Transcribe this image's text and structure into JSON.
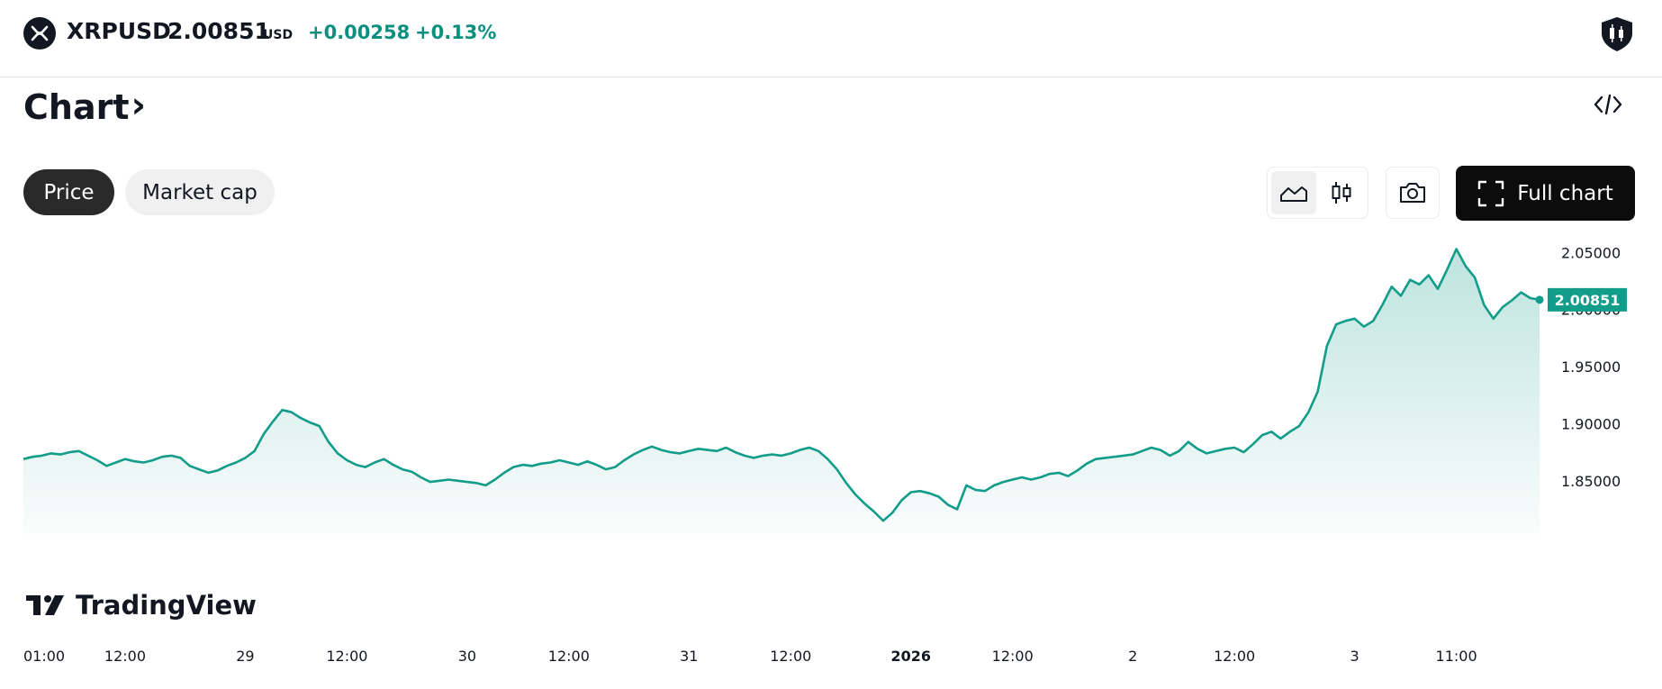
{
  "header": {
    "symbol": "XRPUSD",
    "price": "2.00851",
    "currency": "USD",
    "change": "+0.00258",
    "change_percent": "+0.13%",
    "accent_color": "#0d8f80"
  },
  "page": {
    "title": "Chart",
    "title_chevron": "›"
  },
  "toggles": {
    "price": "Price",
    "market_cap": "Market cap",
    "active": "Price"
  },
  "toolbar": {
    "full_chart": "Full chart",
    "chart_type_selected": "area"
  },
  "watermark": {
    "brand": "TradingView"
  },
  "chart_data": {
    "type": "area",
    "series_color": "#129c8a",
    "last_price_label": "2.00851",
    "y_ticks": [
      "2.05000",
      "2.00000",
      "1.95000",
      "1.90000",
      "1.85000"
    ],
    "y_tick_values": [
      2.05,
      2.0,
      1.95,
      1.9,
      1.85
    ],
    "ylim": [
      1.8033,
      2.0581
    ],
    "x_ticks": [
      {
        "label": "01:00",
        "i": 0,
        "bold": false
      },
      {
        "label": "12:00",
        "i": 11,
        "bold": false
      },
      {
        "label": "29",
        "i": 24,
        "bold": false
      },
      {
        "label": "12:00",
        "i": 35,
        "bold": false
      },
      {
        "label": "30",
        "i": 48,
        "bold": false
      },
      {
        "label": "12:00",
        "i": 59,
        "bold": false
      },
      {
        "label": "31",
        "i": 72,
        "bold": false
      },
      {
        "label": "12:00",
        "i": 83,
        "bold": false
      },
      {
        "label": "2026",
        "i": 96,
        "bold": true
      },
      {
        "label": "12:00",
        "i": 107,
        "bold": false
      },
      {
        "label": "2",
        "i": 120,
        "bold": false
      },
      {
        "label": "12:00",
        "i": 131,
        "bold": false
      },
      {
        "label": "3",
        "i": 144,
        "bold": false
      },
      {
        "label": "11:00",
        "i": 155,
        "bold": false
      }
    ],
    "values": [
      1.869,
      1.871,
      1.872,
      1.874,
      1.873,
      1.875,
      1.876,
      1.872,
      1.868,
      1.863,
      1.866,
      1.869,
      1.867,
      1.866,
      1.868,
      1.871,
      1.872,
      1.87,
      1.863,
      1.86,
      1.857,
      1.859,
      1.863,
      1.866,
      1.87,
      1.876,
      1.891,
      1.902,
      1.912,
      1.91,
      1.905,
      1.901,
      1.898,
      1.884,
      1.874,
      1.868,
      1.864,
      1.862,
      1.866,
      1.869,
      1.864,
      1.86,
      1.858,
      1.853,
      1.849,
      1.85,
      1.851,
      1.85,
      1.849,
      1.848,
      1.846,
      1.851,
      1.857,
      1.862,
      1.864,
      1.863,
      1.865,
      1.866,
      1.868,
      1.866,
      1.864,
      1.867,
      1.864,
      1.86,
      1.862,
      1.868,
      1.873,
      1.877,
      1.88,
      1.877,
      1.875,
      1.874,
      1.876,
      1.878,
      1.877,
      1.876,
      1.879,
      1.875,
      1.872,
      1.87,
      1.872,
      1.873,
      1.872,
      1.874,
      1.877,
      1.879,
      1.876,
      1.869,
      1.86,
      1.848,
      1.838,
      1.83,
      1.823,
      1.815,
      1.822,
      1.833,
      1.84,
      1.841,
      1.839,
      1.836,
      1.829,
      1.825,
      1.846,
      1.842,
      1.841,
      1.846,
      1.849,
      1.851,
      1.853,
      1.851,
      1.853,
      1.856,
      1.857,
      1.854,
      1.859,
      1.865,
      1.869,
      1.87,
      1.871,
      1.872,
      1.873,
      1.876,
      1.879,
      1.877,
      1.872,
      1.876,
      1.884,
      1.878,
      1.874,
      1.876,
      1.878,
      1.879,
      1.875,
      1.882,
      1.89,
      1.893,
      1.887,
      1.893,
      1.898,
      1.91,
      1.928,
      1.968,
      1.987,
      1.99,
      1.992,
      1.985,
      1.99,
      2.004,
      2.02,
      2.012,
      2.026,
      2.022,
      2.03,
      2.018,
      2.035,
      2.053,
      2.038,
      2.028,
      2.004,
      1.992,
      2.002,
      2.008,
      2.015,
      2.01,
      2.00851
    ]
  }
}
